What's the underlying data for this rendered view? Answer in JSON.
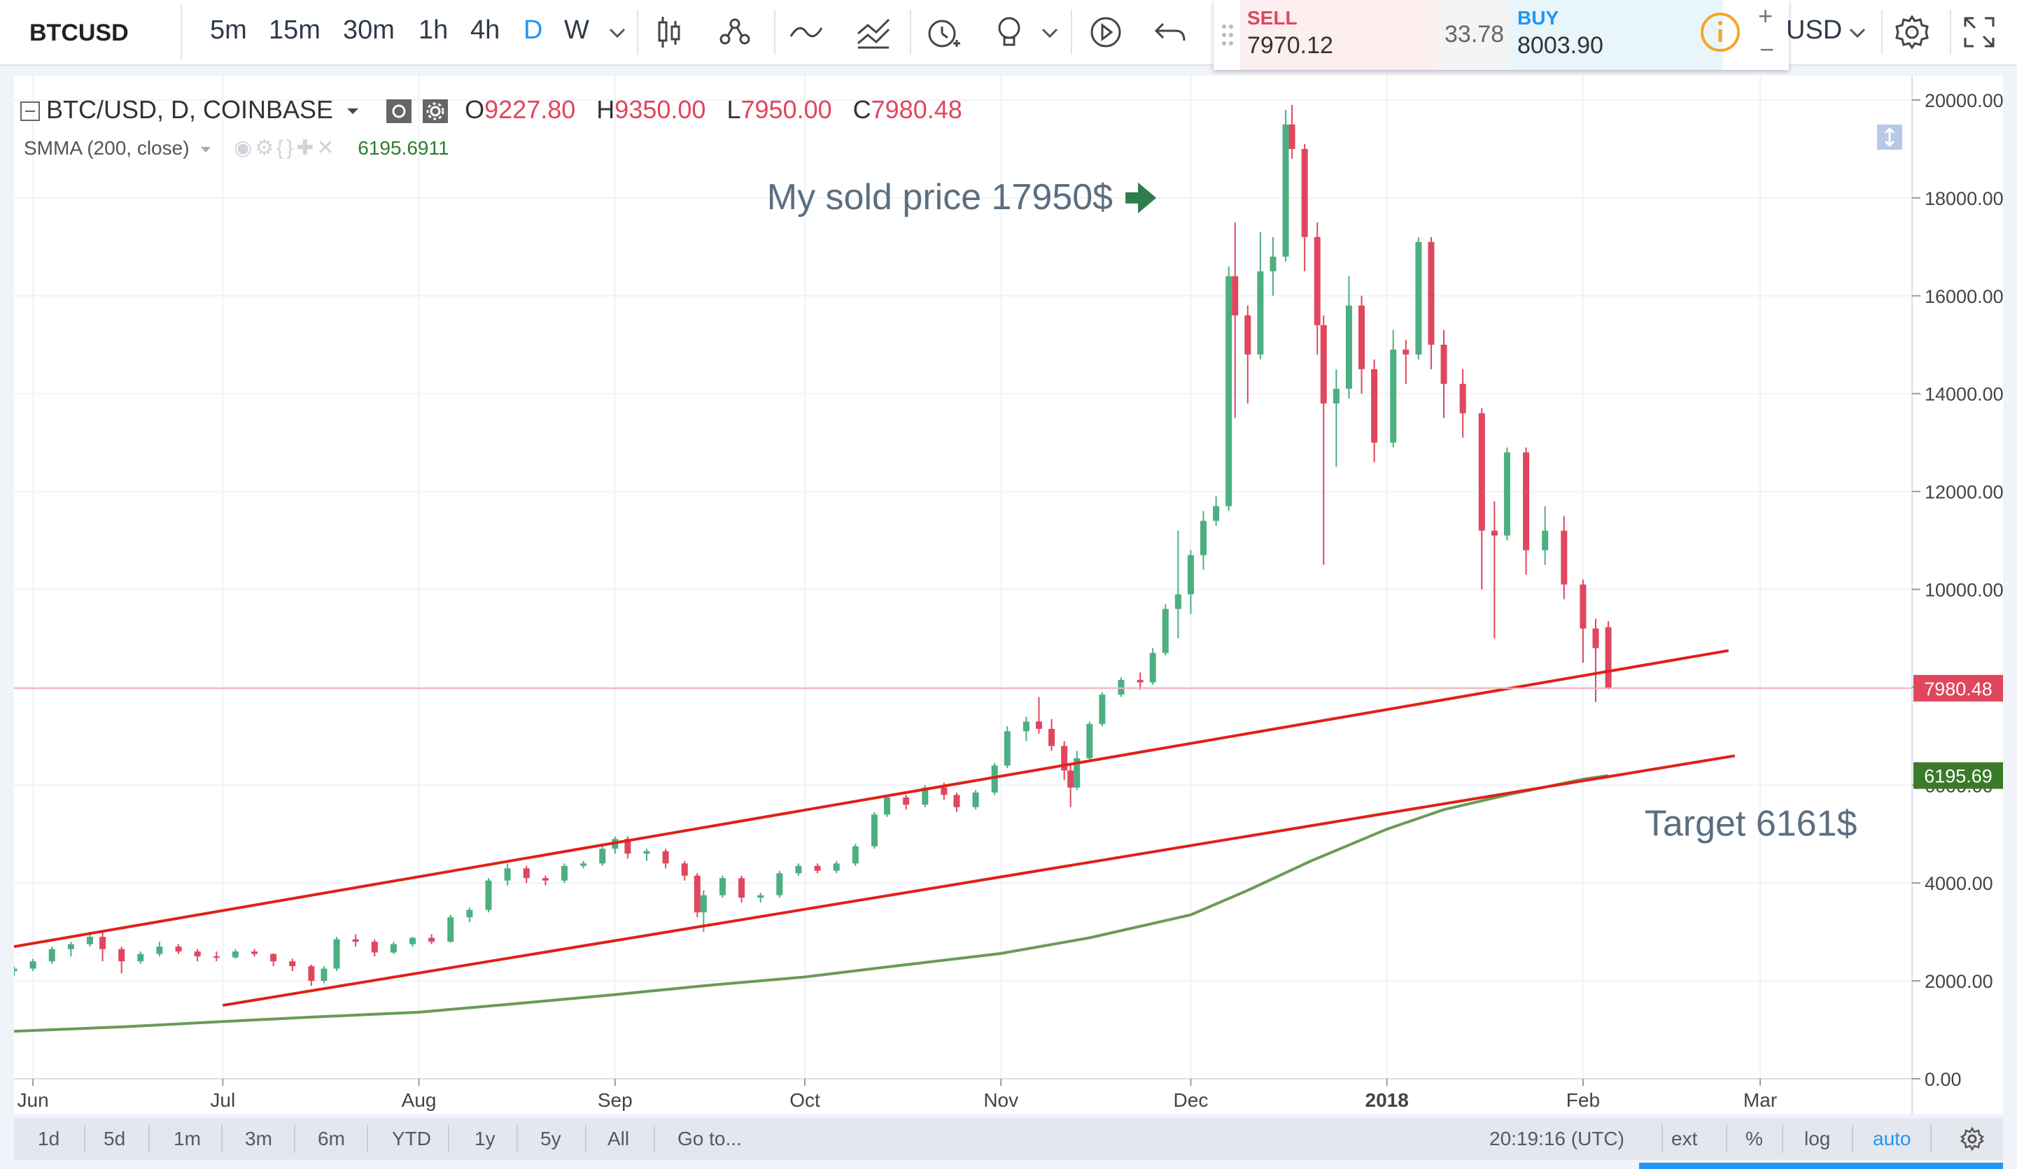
{
  "toolbar": {
    "symbol": "BTCUSD",
    "intervals": [
      "5m",
      "15m",
      "30m",
      "1h",
      "4h",
      "D",
      "W"
    ],
    "active_interval": "D",
    "currency": "USD",
    "icons": [
      "candles-icon",
      "indicators-icon",
      "compare-icon",
      "templates-icon",
      "alert-icon",
      "idea-icon",
      "replay-icon",
      "undo-icon",
      "settings-icon",
      "fullscreen-icon"
    ]
  },
  "trade_panel": {
    "sell_label": "SELL",
    "sell_value": "7970.12",
    "spread": "33.78",
    "buy_label": "BUY",
    "buy_value": "8003.90",
    "plus": "+",
    "minus": "−",
    "info_icon": "info-icon"
  },
  "legend": {
    "title": "BTC/USD, D, COINBASE",
    "o_label": "O",
    "o_value": "9227.80",
    "h_label": "H",
    "h_value": "9350.00",
    "l_label": "L",
    "l_value": "7950.00",
    "c_label": "C",
    "c_value": "7980.48",
    "indicator": "SMMA (200, close)",
    "indicator_value": "6195.6911"
  },
  "bottom_bar": {
    "ranges": [
      "1d",
      "5d",
      "1m",
      "3m",
      "6m",
      "YTD",
      "1y",
      "5y",
      "All"
    ],
    "goto": "Go to...",
    "time": "20:19:16 (UTC)",
    "ext": "ext",
    "percent": "%",
    "log": "log",
    "auto": "auto"
  },
  "colors": {
    "up": "#4caf82",
    "down": "#e0465e",
    "trendline": "#e0201a",
    "smma": "#6a9a58",
    "annotation": "#5a6e80",
    "arrow": "#2e7d4a",
    "accent": "#2196f3"
  },
  "chart_data": {
    "type": "candlestick",
    "symbol": "BTC/USD",
    "interval": "D",
    "exchange": "COINBASE",
    "ylim": [
      0,
      20500
    ],
    "x_ticks": [
      "Jun",
      "Jul",
      "Aug",
      "Sep",
      "Oct",
      "Nov",
      "Dec",
      "2018",
      "Feb",
      "Mar"
    ],
    "x_range": [
      "2017-05-29",
      "2018-03-25"
    ],
    "y_ticks": [
      "0.00",
      "2000.00",
      "4000.00",
      "6000.00",
      "8000.00",
      "10000.00",
      "12000.00",
      "14000.00",
      "16000.00",
      "18000.00",
      "20000.00"
    ],
    "y_tick_values": [
      0,
      2000,
      4000,
      6000,
      8000,
      10000,
      12000,
      14000,
      16000,
      18000,
      20000
    ],
    "last_price_label": "7980.48",
    "last_price": 7980.48,
    "smma_label": "6195.69",
    "smma_last": 6195.69,
    "smma_series": [
      [
        "2017-05-29",
        970
      ],
      [
        "2017-06-15",
        1060
      ],
      [
        "2017-07-01",
        1170
      ],
      [
        "2017-07-15",
        1260
      ],
      [
        "2017-08-01",
        1360
      ],
      [
        "2017-08-15",
        1520
      ],
      [
        "2017-09-01",
        1720
      ],
      [
        "2017-09-15",
        1900
      ],
      [
        "2017-10-01",
        2080
      ],
      [
        "2017-10-15",
        2300
      ],
      [
        "2017-11-01",
        2560
      ],
      [
        "2017-11-15",
        2880
      ],
      [
        "2017-12-01",
        3350
      ],
      [
        "2017-12-10",
        3850
      ],
      [
        "2017-12-20",
        4450
      ],
      [
        "2018-01-01",
        5100
      ],
      [
        "2018-01-10",
        5500
      ],
      [
        "2018-01-20",
        5800
      ],
      [
        "2018-02-01",
        6120
      ],
      [
        "2018-02-05",
        6195.69
      ]
    ],
    "trendlines": [
      {
        "start": [
          "2017-05-29",
          2700
        ],
        "end": [
          "2018-02-24",
          8750
        ]
      },
      {
        "start": [
          "2017-07-01",
          1500
        ],
        "end": [
          "2018-02-25",
          6600
        ]
      }
    ],
    "annotations": [
      {
        "text": "My sold price 17950$",
        "date": "2017-11-22",
        "price": 18000,
        "arrow": true
      },
      {
        "text": "Target 6161$",
        "date": "2018-01-20",
        "price": 5200,
        "arrow": false
      }
    ],
    "candles": [
      [
        "2017-05-29",
        2200,
        2300,
        2100,
        2250
      ],
      [
        "2017-06-01",
        2250,
        2450,
        2200,
        2400
      ],
      [
        "2017-06-04",
        2400,
        2700,
        2350,
        2650
      ],
      [
        "2017-06-07",
        2650,
        2800,
        2500,
        2750
      ],
      [
        "2017-06-10",
        2750,
        3000,
        2700,
        2900
      ],
      [
        "2017-06-12",
        2900,
        3000,
        2400,
        2650
      ],
      [
        "2017-06-15",
        2650,
        2700,
        2150,
        2400
      ],
      [
        "2017-06-18",
        2400,
        2600,
        2350,
        2550
      ],
      [
        "2017-06-21",
        2550,
        2800,
        2500,
        2700
      ],
      [
        "2017-06-24",
        2700,
        2750,
        2550,
        2600
      ],
      [
        "2017-06-27",
        2600,
        2650,
        2400,
        2500
      ],
      [
        "2017-06-30",
        2500,
        2600,
        2400,
        2480
      ],
      [
        "2017-07-03",
        2480,
        2650,
        2450,
        2600
      ],
      [
        "2017-07-06",
        2600,
        2650,
        2500,
        2550
      ],
      [
        "2017-07-09",
        2550,
        2560,
        2300,
        2400
      ],
      [
        "2017-07-12",
        2400,
        2450,
        2200,
        2300
      ],
      [
        "2017-07-15",
        2300,
        2330,
        1900,
        2000
      ],
      [
        "2017-07-17",
        2000,
        2300,
        1950,
        2250
      ],
      [
        "2017-07-19",
        2250,
        2900,
        2200,
        2850
      ],
      [
        "2017-07-22",
        2850,
        2950,
        2700,
        2800
      ],
      [
        "2017-07-25",
        2800,
        2850,
        2500,
        2580
      ],
      [
        "2017-07-28",
        2580,
        2800,
        2550,
        2750
      ],
      [
        "2017-07-31",
        2750,
        2900,
        2700,
        2880
      ],
      [
        "2017-08-03",
        2880,
        2950,
        2750,
        2800
      ],
      [
        "2017-08-06",
        2800,
        3350,
        2780,
        3300
      ],
      [
        "2017-08-09",
        3300,
        3500,
        3200,
        3450
      ],
      [
        "2017-08-12",
        3450,
        4100,
        3400,
        4050
      ],
      [
        "2017-08-15",
        4050,
        4400,
        3950,
        4300
      ],
      [
        "2017-08-18",
        4300,
        4350,
        4000,
        4100
      ],
      [
        "2017-08-21",
        4100,
        4150,
        3950,
        4050
      ],
      [
        "2017-08-24",
        4050,
        4400,
        4000,
        4350
      ],
      [
        "2017-08-27",
        4350,
        4450,
        4300,
        4400
      ],
      [
        "2017-08-30",
        4400,
        4750,
        4350,
        4700
      ],
      [
        "2017-09-01",
        4700,
        4950,
        4600,
        4900
      ],
      [
        "2017-09-03",
        4900,
        4950,
        4500,
        4600
      ],
      [
        "2017-09-06",
        4600,
        4700,
        4450,
        4650
      ],
      [
        "2017-09-09",
        4650,
        4700,
        4300,
        4400
      ],
      [
        "2017-09-12",
        4400,
        4450,
        4050,
        4150
      ],
      [
        "2017-09-14",
        4150,
        4200,
        3300,
        3400
      ],
      [
        "2017-09-15",
        3400,
        3850,
        3000,
        3750
      ],
      [
        "2017-09-18",
        3750,
        4150,
        3700,
        4100
      ],
      [
        "2017-09-21",
        4100,
        4150,
        3600,
        3700
      ],
      [
        "2017-09-24",
        3700,
        3800,
        3600,
        3750
      ],
      [
        "2017-09-27",
        3750,
        4250,
        3700,
        4200
      ],
      [
        "2017-09-30",
        4200,
        4400,
        4150,
        4350
      ],
      [
        "2017-10-03",
        4350,
        4400,
        4200,
        4250
      ],
      [
        "2017-10-06",
        4250,
        4450,
        4200,
        4400
      ],
      [
        "2017-10-09",
        4400,
        4800,
        4350,
        4750
      ],
      [
        "2017-10-12",
        4750,
        5450,
        4700,
        5400
      ],
      [
        "2017-10-14",
        5400,
        5800,
        5350,
        5750
      ],
      [
        "2017-10-17",
        5750,
        5800,
        5500,
        5600
      ],
      [
        "2017-10-20",
        5600,
        6000,
        5550,
        5950
      ],
      [
        "2017-10-23",
        5950,
        6050,
        5700,
        5800
      ],
      [
        "2017-10-25",
        5800,
        5850,
        5450,
        5550
      ],
      [
        "2017-10-28",
        5550,
        5900,
        5500,
        5850
      ],
      [
        "2017-10-31",
        5850,
        6450,
        5800,
        6400
      ],
      [
        "2017-11-02",
        6400,
        7200,
        6350,
        7100
      ],
      [
        "2017-11-05",
        7100,
        7400,
        6900,
        7300
      ],
      [
        "2017-11-07",
        7300,
        7800,
        7050,
        7150
      ],
      [
        "2017-11-09",
        7150,
        7350,
        6700,
        6800
      ],
      [
        "2017-11-11",
        6800,
        6900,
        6100,
        6300
      ],
      [
        "2017-11-12",
        6300,
        6450,
        5550,
        5950
      ],
      [
        "2017-11-13",
        5950,
        6700,
        5900,
        6550
      ],
      [
        "2017-11-15",
        6550,
        7300,
        6500,
        7250
      ],
      [
        "2017-11-17",
        7250,
        7900,
        7200,
        7850
      ],
      [
        "2017-11-20",
        7850,
        8200,
        7800,
        8150
      ],
      [
        "2017-11-23",
        8150,
        8300,
        7950,
        8100
      ],
      [
        "2017-11-25",
        8100,
        8800,
        8050,
        8700
      ],
      [
        "2017-11-27",
        8700,
        9700,
        8650,
        9600
      ],
      [
        "2017-11-29",
        9600,
        11200,
        9000,
        9900
      ],
      [
        "2017-12-01",
        9900,
        10800,
        9500,
        10700
      ],
      [
        "2017-12-03",
        10700,
        11600,
        10400,
        11400
      ],
      [
        "2017-12-05",
        11400,
        11900,
        11300,
        11700
      ],
      [
        "2017-12-07",
        11700,
        16600,
        11600,
        16400
      ],
      [
        "2017-12-08",
        16400,
        17500,
        13500,
        15600
      ],
      [
        "2017-12-10",
        15600,
        15800,
        13800,
        14800
      ],
      [
        "2017-12-12",
        14800,
        17300,
        14700,
        16500
      ],
      [
        "2017-12-14",
        16500,
        17200,
        16000,
        16800
      ],
      [
        "2017-12-16",
        16800,
        19800,
        16700,
        19500
      ],
      [
        "2017-12-17",
        19500,
        19900,
        18800,
        19000
      ],
      [
        "2017-12-19",
        19000,
        19100,
        16500,
        17200
      ],
      [
        "2017-12-21",
        17200,
        17500,
        14800,
        15400
      ],
      [
        "2017-12-22",
        15400,
        15600,
        10500,
        13800
      ],
      [
        "2017-12-24",
        13800,
        14500,
        12500,
        14100
      ],
      [
        "2017-12-26",
        14100,
        16400,
        13900,
        15800
      ],
      [
        "2017-12-28",
        15800,
        16000,
        14000,
        14500
      ],
      [
        "2017-12-30",
        14500,
        14700,
        12600,
        13000
      ],
      [
        "2018-01-02",
        13000,
        15300,
        12900,
        14900
      ],
      [
        "2018-01-04",
        14900,
        15100,
        14200,
        14800
      ],
      [
        "2018-01-06",
        14800,
        17200,
        14700,
        17100
      ],
      [
        "2018-01-08",
        17100,
        17200,
        14500,
        15000
      ],
      [
        "2018-01-10",
        15000,
        15300,
        13500,
        14200
      ],
      [
        "2018-01-13",
        14200,
        14500,
        13100,
        13600
      ],
      [
        "2018-01-16",
        13600,
        13700,
        10000,
        11200
      ],
      [
        "2018-01-18",
        11200,
        11800,
        9000,
        11100
      ],
      [
        "2018-01-20",
        11100,
        12900,
        11000,
        12800
      ],
      [
        "2018-01-23",
        12800,
        12900,
        10300,
        10800
      ],
      [
        "2018-01-26",
        10800,
        11700,
        10500,
        11200
      ],
      [
        "2018-01-29",
        11200,
        11500,
        9800,
        10100
      ],
      [
        "2018-02-01",
        10100,
        10200,
        8500,
        9200
      ],
      [
        "2018-02-03",
        9200,
        9400,
        7700,
        8800
      ],
      [
        "2018-02-05",
        9227.8,
        9350,
        7950,
        7980.48
      ]
    ]
  }
}
